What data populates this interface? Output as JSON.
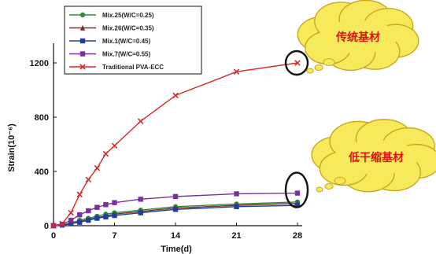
{
  "chart_data": {
    "type": "line",
    "xlabel": "Time(d)",
    "ylabel": "Strain(10⁻⁶)",
    "xlim": [
      0,
      28
    ],
    "ylim": [
      0,
      1200
    ],
    "xticks": [
      "0",
      "7",
      "14",
      "21",
      "28"
    ],
    "yticks": [
      "0",
      "400",
      "800",
      "1200"
    ],
    "grid": false,
    "legend_position": "top-left",
    "series": [
      {
        "name": "Mix.25(W/C=0.25)",
        "color": "#2e8b3a",
        "marker": "circle",
        "x": [
          0,
          1,
          2,
          3,
          4,
          5,
          6,
          7,
          10,
          14,
          21,
          28
        ],
        "y": [
          0,
          5,
          20,
          40,
          55,
          70,
          85,
          95,
          115,
          140,
          160,
          175
        ]
      },
      {
        "name": "Mix.26(W/C=0.35)",
        "color": "#7a2c2c",
        "marker": "triangle",
        "x": [
          0,
          1,
          2,
          3,
          4,
          5,
          6,
          7,
          10,
          14,
          21,
          28
        ],
        "y": [
          0,
          5,
          15,
          30,
          45,
          60,
          72,
          85,
          105,
          130,
          150,
          165
        ]
      },
      {
        "name": "Mix.1(W/C=0.45)",
        "color": "#1f3fa0",
        "marker": "square",
        "x": [
          0,
          1,
          2,
          3,
          4,
          5,
          6,
          7,
          10,
          14,
          21,
          28
        ],
        "y": [
          0,
          5,
          15,
          25,
          40,
          55,
          65,
          75,
          95,
          120,
          140,
          150
        ]
      },
      {
        "name": "Mix.7(W/C=0.55)",
        "color": "#7a2f9e",
        "marker": "square",
        "x": [
          0,
          1,
          2,
          3,
          4,
          5,
          6,
          7,
          10,
          14,
          21,
          28
        ],
        "y": [
          0,
          10,
          40,
          80,
          110,
          135,
          155,
          170,
          195,
          215,
          235,
          240
        ]
      },
      {
        "name": "Traditional PVA-ECC",
        "color": "#d42a2a",
        "marker": "x",
        "x": [
          0,
          1,
          2,
          3,
          4,
          5,
          6,
          7,
          10,
          14,
          21,
          28
        ],
        "y": [
          0,
          15,
          95,
          230,
          340,
          425,
          530,
          590,
          770,
          960,
          1135,
          1200
        ]
      }
    ],
    "annotations": [
      {
        "text": "传统基材",
        "target_series": "Traditional PVA-ECC"
      },
      {
        "text": "低干缩基材",
        "target_series": "Mix.7(W/C=0.55)"
      }
    ]
  }
}
